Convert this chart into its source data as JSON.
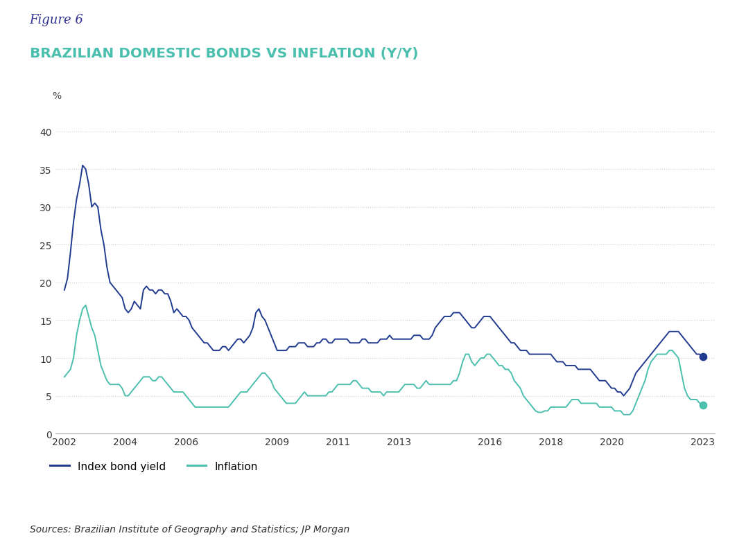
{
  "figure_label": "Figure 6",
  "figure_label_color": "#2E3192",
  "title": "BRAZILIAN DOMESTIC BONDS VS INFLATION (Y/Y)",
  "title_color": "#4BBFAD",
  "source_text": "Sources: Brazilian Institute of Geography and Statistics; JP Morgan",
  "ylabel": "%",
  "ylim": [
    0,
    42
  ],
  "yticks": [
    0,
    5,
    10,
    15,
    20,
    25,
    30,
    35,
    40
  ],
  "xticks": [
    2002,
    2004,
    2006,
    2009,
    2011,
    2013,
    2016,
    2018,
    2020,
    2023
  ],
  "bond_color": "#1F3A8F",
  "inflation_color": "#4BBFAD",
  "background_color": "#FFFFFF",
  "grid_color": "#CCCCCC",
  "legend_labels": [
    "Index bond yield",
    "Inflation"
  ],
  "bond_data": {
    "years": [
      2002.0,
      2002.1,
      2002.2,
      2002.3,
      2002.4,
      2002.5,
      2002.6,
      2002.7,
      2002.8,
      2002.9,
      2003.0,
      2003.1,
      2003.2,
      2003.3,
      2003.4,
      2003.5,
      2003.6,
      2003.7,
      2003.8,
      2003.9,
      2004.0,
      2004.1,
      2004.2,
      2004.3,
      2004.4,
      2004.5,
      2004.6,
      2004.7,
      2004.8,
      2004.9,
      2005.0,
      2005.1,
      2005.2,
      2005.3,
      2005.4,
      2005.5,
      2005.6,
      2005.7,
      2005.8,
      2005.9,
      2006.0,
      2006.1,
      2006.2,
      2006.3,
      2006.4,
      2006.5,
      2006.6,
      2006.7,
      2006.8,
      2006.9,
      2007.0,
      2007.1,
      2007.2,
      2007.3,
      2007.4,
      2007.5,
      2007.6,
      2007.7,
      2007.8,
      2007.9,
      2008.0,
      2008.1,
      2008.2,
      2008.3,
      2008.4,
      2008.5,
      2008.6,
      2008.7,
      2008.8,
      2008.9,
      2009.0,
      2009.1,
      2009.2,
      2009.3,
      2009.4,
      2009.5,
      2009.6,
      2009.7,
      2009.8,
      2009.9,
      2010.0,
      2010.1,
      2010.2,
      2010.3,
      2010.4,
      2010.5,
      2010.6,
      2010.7,
      2010.8,
      2010.9,
      2011.0,
      2011.1,
      2011.2,
      2011.3,
      2011.4,
      2011.5,
      2011.6,
      2011.7,
      2011.8,
      2011.9,
      2012.0,
      2012.1,
      2012.2,
      2012.3,
      2012.4,
      2012.5,
      2012.6,
      2012.7,
      2012.8,
      2012.9,
      2013.0,
      2013.1,
      2013.2,
      2013.3,
      2013.4,
      2013.5,
      2013.6,
      2013.7,
      2013.8,
      2013.9,
      2014.0,
      2014.1,
      2014.2,
      2014.3,
      2014.4,
      2014.5,
      2014.6,
      2014.7,
      2014.8,
      2014.9,
      2015.0,
      2015.1,
      2015.2,
      2015.3,
      2015.4,
      2015.5,
      2015.6,
      2015.7,
      2015.8,
      2015.9,
      2016.0,
      2016.1,
      2016.2,
      2016.3,
      2016.4,
      2016.5,
      2016.6,
      2016.7,
      2016.8,
      2016.9,
      2017.0,
      2017.1,
      2017.2,
      2017.3,
      2017.4,
      2017.5,
      2017.6,
      2017.7,
      2017.8,
      2017.9,
      2018.0,
      2018.1,
      2018.2,
      2018.3,
      2018.4,
      2018.5,
      2018.6,
      2018.7,
      2018.8,
      2018.9,
      2019.0,
      2019.1,
      2019.2,
      2019.3,
      2019.4,
      2019.5,
      2019.6,
      2019.7,
      2019.8,
      2019.9,
      2020.0,
      2020.1,
      2020.2,
      2020.3,
      2020.4,
      2020.5,
      2020.6,
      2020.7,
      2020.8,
      2020.9,
      2021.0,
      2021.1,
      2021.2,
      2021.3,
      2021.4,
      2021.5,
      2021.6,
      2021.7,
      2021.8,
      2021.9,
      2022.0,
      2022.1,
      2022.2,
      2022.3,
      2022.4,
      2022.5,
      2022.6,
      2022.7,
      2022.8,
      2022.9,
      2023.0
    ],
    "values": [
      19.0,
      20.5,
      24.0,
      28.0,
      31.0,
      33.0,
      35.5,
      35.0,
      33.0,
      30.0,
      30.5,
      30.0,
      27.0,
      25.0,
      22.0,
      20.0,
      19.5,
      19.0,
      18.5,
      18.0,
      16.5,
      16.0,
      16.5,
      17.5,
      17.0,
      16.5,
      19.0,
      19.5,
      19.0,
      19.0,
      18.5,
      19.0,
      19.0,
      18.5,
      18.5,
      17.5,
      16.0,
      16.5,
      16.0,
      15.5,
      15.5,
      15.0,
      14.0,
      13.5,
      13.0,
      12.5,
      12.0,
      12.0,
      11.5,
      11.0,
      11.0,
      11.0,
      11.5,
      11.5,
      11.0,
      11.5,
      12.0,
      12.5,
      12.5,
      12.0,
      12.5,
      13.0,
      14.0,
      16.0,
      16.5,
      15.5,
      15.0,
      14.0,
      13.0,
      12.0,
      11.0,
      11.0,
      11.0,
      11.0,
      11.5,
      11.5,
      11.5,
      12.0,
      12.0,
      12.0,
      11.5,
      11.5,
      11.5,
      12.0,
      12.0,
      12.5,
      12.5,
      12.0,
      12.0,
      12.5,
      12.5,
      12.5,
      12.5,
      12.5,
      12.0,
      12.0,
      12.0,
      12.0,
      12.5,
      12.5,
      12.0,
      12.0,
      12.0,
      12.0,
      12.5,
      12.5,
      12.5,
      13.0,
      12.5,
      12.5,
      12.5,
      12.5,
      12.5,
      12.5,
      12.5,
      13.0,
      13.0,
      13.0,
      12.5,
      12.5,
      12.5,
      13.0,
      14.0,
      14.5,
      15.0,
      15.5,
      15.5,
      15.5,
      16.0,
      16.0,
      16.0,
      15.5,
      15.0,
      14.5,
      14.0,
      14.0,
      14.5,
      15.0,
      15.5,
      15.5,
      15.5,
      15.0,
      14.5,
      14.0,
      13.5,
      13.0,
      12.5,
      12.0,
      12.0,
      11.5,
      11.0,
      11.0,
      11.0,
      10.5,
      10.5,
      10.5,
      10.5,
      10.5,
      10.5,
      10.5,
      10.5,
      10.0,
      9.5,
      9.5,
      9.5,
      9.0,
      9.0,
      9.0,
      9.0,
      8.5,
      8.5,
      8.5,
      8.5,
      8.5,
      8.0,
      7.5,
      7.0,
      7.0,
      7.0,
      6.5,
      6.0,
      6.0,
      5.5,
      5.5,
      5.0,
      5.5,
      6.0,
      7.0,
      8.0,
      8.5,
      9.0,
      9.5,
      10.0,
      10.5,
      11.0,
      11.5,
      12.0,
      12.5,
      13.0,
      13.5,
      13.5,
      13.5,
      13.5,
      13.0,
      12.5,
      12.0,
      11.5,
      11.0,
      10.5,
      10.5,
      10.2
    ]
  },
  "inflation_data": {
    "years": [
      2002.0,
      2002.1,
      2002.2,
      2002.3,
      2002.4,
      2002.5,
      2002.6,
      2002.7,
      2002.8,
      2002.9,
      2003.0,
      2003.1,
      2003.2,
      2003.3,
      2003.4,
      2003.5,
      2003.6,
      2003.7,
      2003.8,
      2003.9,
      2004.0,
      2004.1,
      2004.2,
      2004.3,
      2004.4,
      2004.5,
      2004.6,
      2004.7,
      2004.8,
      2004.9,
      2005.0,
      2005.1,
      2005.2,
      2005.3,
      2005.4,
      2005.5,
      2005.6,
      2005.7,
      2005.8,
      2005.9,
      2006.0,
      2006.1,
      2006.2,
      2006.3,
      2006.4,
      2006.5,
      2006.6,
      2006.7,
      2006.8,
      2006.9,
      2007.0,
      2007.1,
      2007.2,
      2007.3,
      2007.4,
      2007.5,
      2007.6,
      2007.7,
      2007.8,
      2007.9,
      2008.0,
      2008.1,
      2008.2,
      2008.3,
      2008.4,
      2008.5,
      2008.6,
      2008.7,
      2008.8,
      2008.9,
      2009.0,
      2009.1,
      2009.2,
      2009.3,
      2009.4,
      2009.5,
      2009.6,
      2009.7,
      2009.8,
      2009.9,
      2010.0,
      2010.1,
      2010.2,
      2010.3,
      2010.4,
      2010.5,
      2010.6,
      2010.7,
      2010.8,
      2010.9,
      2011.0,
      2011.1,
      2011.2,
      2011.3,
      2011.4,
      2011.5,
      2011.6,
      2011.7,
      2011.8,
      2011.9,
      2012.0,
      2012.1,
      2012.2,
      2012.3,
      2012.4,
      2012.5,
      2012.6,
      2012.7,
      2012.8,
      2012.9,
      2013.0,
      2013.1,
      2013.2,
      2013.3,
      2013.4,
      2013.5,
      2013.6,
      2013.7,
      2013.8,
      2013.9,
      2014.0,
      2014.1,
      2014.2,
      2014.3,
      2014.4,
      2014.5,
      2014.6,
      2014.7,
      2014.8,
      2014.9,
      2015.0,
      2015.1,
      2015.2,
      2015.3,
      2015.4,
      2015.5,
      2015.6,
      2015.7,
      2015.8,
      2015.9,
      2016.0,
      2016.1,
      2016.2,
      2016.3,
      2016.4,
      2016.5,
      2016.6,
      2016.7,
      2016.8,
      2016.9,
      2017.0,
      2017.1,
      2017.2,
      2017.3,
      2017.4,
      2017.5,
      2017.6,
      2017.7,
      2017.8,
      2017.9,
      2018.0,
      2018.1,
      2018.2,
      2018.3,
      2018.4,
      2018.5,
      2018.6,
      2018.7,
      2018.8,
      2018.9,
      2019.0,
      2019.1,
      2019.2,
      2019.3,
      2019.4,
      2019.5,
      2019.6,
      2019.7,
      2019.8,
      2019.9,
      2020.0,
      2020.1,
      2020.2,
      2020.3,
      2020.4,
      2020.5,
      2020.6,
      2020.7,
      2020.8,
      2020.9,
      2021.0,
      2021.1,
      2021.2,
      2021.3,
      2021.4,
      2021.5,
      2021.6,
      2021.7,
      2021.8,
      2021.9,
      2022.0,
      2022.1,
      2022.2,
      2022.3,
      2022.4,
      2022.5,
      2022.6,
      2022.7,
      2022.8,
      2022.9,
      2023.0
    ],
    "values": [
      7.5,
      8.0,
      8.5,
      10.0,
      13.0,
      15.0,
      16.5,
      17.0,
      15.5,
      14.0,
      13.0,
      11.0,
      9.0,
      8.0,
      7.0,
      6.5,
      6.5,
      6.5,
      6.5,
      6.0,
      5.0,
      5.0,
      5.5,
      6.0,
      6.5,
      7.0,
      7.5,
      7.5,
      7.5,
      7.0,
      7.0,
      7.5,
      7.5,
      7.0,
      6.5,
      6.0,
      5.5,
      5.5,
      5.5,
      5.5,
      5.0,
      4.5,
      4.0,
      3.5,
      3.5,
      3.5,
      3.5,
      3.5,
      3.5,
      3.5,
      3.5,
      3.5,
      3.5,
      3.5,
      3.5,
      4.0,
      4.5,
      5.0,
      5.5,
      5.5,
      5.5,
      6.0,
      6.5,
      7.0,
      7.5,
      8.0,
      8.0,
      7.5,
      7.0,
      6.0,
      5.5,
      5.0,
      4.5,
      4.0,
      4.0,
      4.0,
      4.0,
      4.5,
      5.0,
      5.5,
      5.0,
      5.0,
      5.0,
      5.0,
      5.0,
      5.0,
      5.0,
      5.5,
      5.5,
      6.0,
      6.5,
      6.5,
      6.5,
      6.5,
      6.5,
      7.0,
      7.0,
      6.5,
      6.0,
      6.0,
      6.0,
      5.5,
      5.5,
      5.5,
      5.5,
      5.0,
      5.5,
      5.5,
      5.5,
      5.5,
      5.5,
      6.0,
      6.5,
      6.5,
      6.5,
      6.5,
      6.0,
      6.0,
      6.5,
      7.0,
      6.5,
      6.5,
      6.5,
      6.5,
      6.5,
      6.5,
      6.5,
      6.5,
      7.0,
      7.0,
      8.0,
      9.5,
      10.5,
      10.5,
      9.5,
      9.0,
      9.5,
      10.0,
      10.0,
      10.5,
      10.5,
      10.0,
      9.5,
      9.0,
      9.0,
      8.5,
      8.5,
      8.0,
      7.0,
      6.5,
      6.0,
      5.0,
      4.5,
      4.0,
      3.5,
      3.0,
      2.8,
      2.8,
      3.0,
      3.0,
      3.5,
      3.5,
      3.5,
      3.5,
      3.5,
      3.5,
      4.0,
      4.5,
      4.5,
      4.5,
      4.0,
      4.0,
      4.0,
      4.0,
      4.0,
      4.0,
      3.5,
      3.5,
      3.5,
      3.5,
      3.5,
      3.0,
      3.0,
      3.0,
      2.5,
      2.5,
      2.5,
      3.0,
      4.0,
      5.0,
      6.0,
      7.0,
      8.5,
      9.5,
      10.0,
      10.5,
      10.5,
      10.5,
      10.5,
      11.0,
      11.0,
      10.5,
      10.0,
      8.0,
      6.0,
      5.0,
      4.5,
      4.5,
      4.5,
      4.0,
      3.8
    ]
  }
}
